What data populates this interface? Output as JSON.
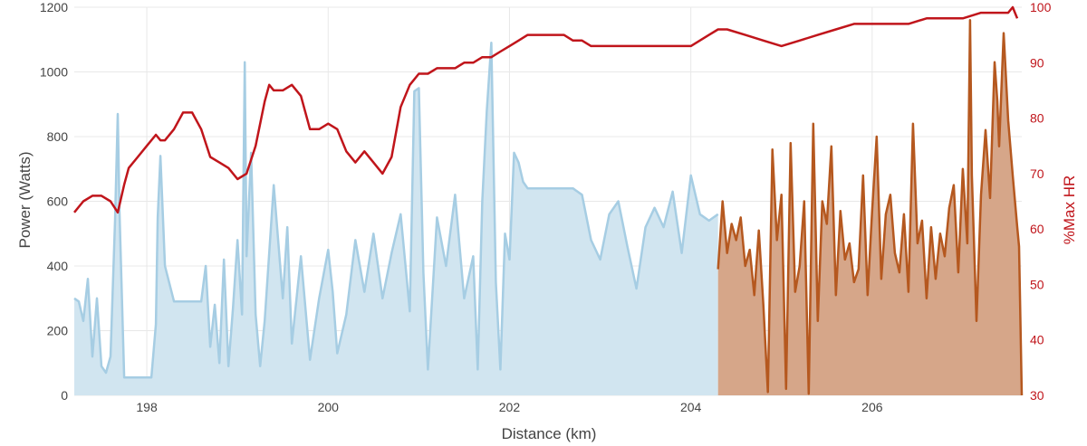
{
  "chart_data": {
    "type": "area",
    "xlabel": "Distance (km)",
    "ylabel": "Power (Watts)",
    "y2label": "%Max HR",
    "xlim": [
      197.2,
      207.65
    ],
    "ylim": [
      0,
      1200
    ],
    "y2lim": [
      30,
      100
    ],
    "x_ticks": [
      198,
      200,
      202,
      204,
      206
    ],
    "x_tick_labels": [
      "198",
      "200",
      "202",
      "204",
      "206"
    ],
    "y_ticks": [
      0,
      200,
      400,
      600,
      800,
      1000,
      1200
    ],
    "y_tick_labels": [
      "0",
      "200",
      "400",
      "600",
      "800",
      "1000",
      "1200"
    ],
    "y2_ticks": [
      30,
      40,
      50,
      60,
      70,
      80,
      90,
      100
    ],
    "y2_tick_labels": [
      "30",
      "40",
      "50",
      "60",
      "70",
      "80",
      "90",
      "100"
    ],
    "grid": true,
    "colors": {
      "power_line": "#a6cde3",
      "power_fill": "#d1e5f0",
      "highlight_line": "#b5581f",
      "highlight_fill": "#d6a689",
      "hr_line": "#c0151b",
      "grid": "#e8e8e8"
    },
    "series": [
      {
        "role": "power",
        "x": [
          197.2,
          197.25,
          197.3,
          197.35,
          197.4,
          197.45,
          197.5,
          197.55,
          197.6,
          197.65,
          197.68,
          197.7,
          197.75,
          197.8,
          197.9,
          198.0,
          198.05,
          198.1,
          198.12,
          198.15,
          198.2,
          198.3,
          198.4,
          198.5,
          198.6,
          198.65,
          198.7,
          198.75,
          198.8,
          198.85,
          198.9,
          198.95,
          199.0,
          199.05,
          199.08,
          199.1,
          199.15,
          199.2,
          199.25,
          199.3,
          199.4,
          199.5,
          199.55,
          199.6,
          199.7,
          199.8,
          199.9,
          200.0,
          200.05,
          200.1,
          200.2,
          200.3,
          200.4,
          200.5,
          200.6,
          200.7,
          200.8,
          200.9,
          200.95,
          201.0,
          201.05,
          201.1,
          201.2,
          201.3,
          201.4,
          201.5,
          201.6,
          201.65,
          201.7,
          201.75,
          201.8,
          201.85,
          201.9,
          201.95,
          202.0,
          202.05,
          202.1,
          202.15,
          202.2,
          202.3,
          202.4,
          202.5,
          202.6,
          202.7,
          202.8,
          202.9,
          203.0,
          203.1,
          203.2,
          203.3,
          203.4,
          203.5,
          203.6,
          203.7,
          203.8,
          203.9,
          204.0,
          204.1,
          204.2,
          204.3
        ],
        "values": [
          300,
          290,
          230,
          360,
          120,
          300,
          90,
          70,
          120,
          540,
          870,
          560,
          55,
          55,
          55,
          55,
          55,
          220,
          550,
          740,
          400,
          290,
          290,
          290,
          290,
          400,
          150,
          280,
          100,
          420,
          90,
          270,
          480,
          250,
          1030,
          430,
          750,
          250,
          90,
          230,
          650,
          300,
          520,
          160,
          430,
          110,
          300,
          450,
          320,
          130,
          250,
          480,
          320,
          500,
          300,
          440,
          560,
          260,
          940,
          950,
          380,
          80,
          550,
          400,
          620,
          300,
          430,
          80,
          600,
          880,
          1090,
          350,
          80,
          500,
          420,
          750,
          720,
          660,
          640,
          640,
          640,
          640,
          640,
          640,
          620,
          480,
          420,
          560,
          600,
          460,
          330,
          520,
          580,
          520,
          630,
          440,
          680,
          560,
          540,
          560
        ]
      },
      {
        "role": "power_highlight",
        "x": [
          204.3,
          204.35,
          204.4,
          204.45,
          204.5,
          204.55,
          204.6,
          204.65,
          204.7,
          204.75,
          204.8,
          204.85,
          204.9,
          204.95,
          205.0,
          205.05,
          205.1,
          205.15,
          205.2,
          205.25,
          205.3,
          205.35,
          205.4,
          205.45,
          205.5,
          205.55,
          205.6,
          205.65,
          205.7,
          205.75,
          205.8,
          205.85,
          205.9,
          205.95,
          206.0,
          206.05,
          206.1,
          206.15,
          206.2,
          206.25,
          206.3,
          206.35,
          206.4,
          206.45,
          206.5,
          206.55,
          206.6,
          206.65,
          206.7,
          206.75,
          206.8,
          206.85,
          206.9,
          206.95,
          207.0,
          207.05,
          207.08,
          207.1,
          207.15,
          207.2,
          207.25,
          207.3,
          207.35,
          207.38,
          207.4,
          207.45,
          207.5,
          207.55,
          207.6,
          207.62,
          207.65
        ],
        "values": [
          390,
          600,
          440,
          530,
          480,
          550,
          400,
          450,
          310,
          510,
          280,
          10,
          760,
          480,
          620,
          20,
          780,
          320,
          400,
          600,
          5,
          840,
          230,
          600,
          530,
          770,
          310,
          570,
          420,
          470,
          350,
          390,
          680,
          310,
          570,
          800,
          360,
          560,
          620,
          440,
          380,
          560,
          320,
          840,
          470,
          540,
          300,
          520,
          360,
          500,
          430,
          580,
          650,
          380,
          700,
          470,
          1160,
          680,
          230,
          620,
          820,
          610,
          1030,
          910,
          770,
          1120,
          850,
          680,
          520,
          460,
          0
        ]
      },
      {
        "role": "hr",
        "x": [
          197.2,
          197.25,
          197.3,
          197.4,
          197.5,
          197.6,
          197.68,
          197.75,
          197.8,
          197.9,
          198.0,
          198.1,
          198.15,
          198.2,
          198.3,
          198.4,
          198.5,
          198.6,
          198.7,
          198.8,
          198.9,
          199.0,
          199.1,
          199.2,
          199.3,
          199.35,
          199.4,
          199.5,
          199.6,
          199.7,
          199.8,
          199.9,
          200.0,
          200.1,
          200.2,
          200.3,
          200.4,
          200.5,
          200.6,
          200.7,
          200.8,
          200.9,
          200.95,
          201.0,
          201.1,
          201.2,
          201.3,
          201.4,
          201.5,
          201.6,
          201.7,
          201.8,
          201.9,
          202.0,
          202.1,
          202.2,
          202.3,
          202.4,
          202.5,
          202.6,
          202.7,
          202.8,
          202.9,
          203.0,
          203.2,
          203.4,
          203.6,
          203.8,
          204.0,
          204.2,
          204.3,
          204.4,
          204.6,
          204.8,
          205.0,
          205.2,
          205.4,
          205.6,
          205.8,
          206.0,
          206.2,
          206.4,
          206.6,
          206.8,
          207.0,
          207.2,
          207.4,
          207.5,
          207.55,
          207.6
        ],
        "values": [
          63,
          64,
          65,
          66,
          66,
          65,
          63,
          68,
          71,
          73,
          75,
          77,
          76,
          76,
          78,
          81,
          81,
          78,
          73,
          72,
          71,
          69,
          70,
          75,
          83,
          86,
          85,
          85,
          86,
          84,
          78,
          78,
          79,
          78,
          74,
          72,
          74,
          72,
          70,
          73,
          82,
          86,
          87,
          88,
          88,
          89,
          89,
          89,
          90,
          90,
          91,
          91,
          92,
          93,
          94,
          95,
          95,
          95,
          95,
          95,
          94,
          94,
          93,
          93,
          93,
          93,
          93,
          93,
          93,
          95,
          96,
          96,
          95,
          94,
          93,
          94,
          95,
          96,
          97,
          97,
          97,
          97,
          98,
          98,
          98,
          99,
          99,
          99,
          100,
          98
        ]
      }
    ]
  }
}
